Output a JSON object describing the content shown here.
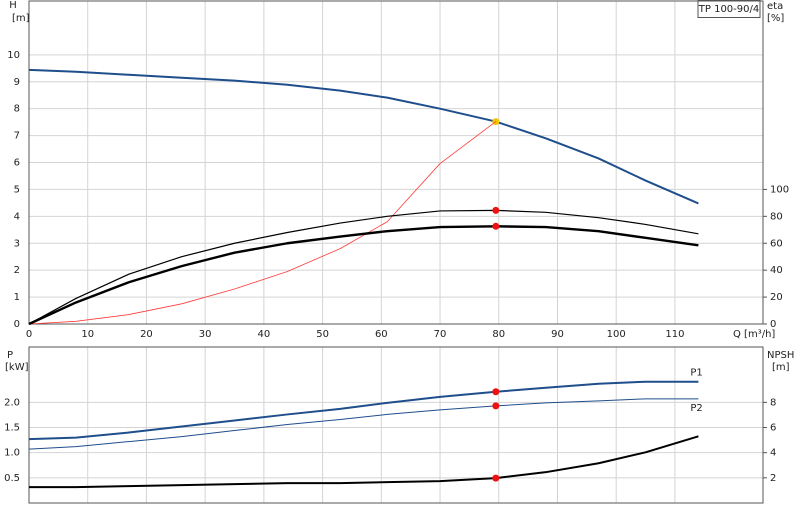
{
  "chart_data": [
    {
      "type": "line",
      "label": "TP 100-90/4",
      "x_label": "Q [m³/h]",
      "y_label": "H",
      "y_unit": "[m]",
      "y2_label": "eta",
      "y2_unit": "[%]",
      "x": [
        0,
        8,
        17,
        26,
        35,
        44,
        53,
        61,
        70,
        79.5,
        88,
        97,
        105,
        114
      ],
      "xlim": [
        0,
        125
      ],
      "xticks": [
        0,
        10,
        20,
        30,
        40,
        50,
        60,
        70,
        80,
        90,
        100,
        110
      ],
      "show_xtick_labels": true,
      "ylim": [
        0,
        12
      ],
      "yticks": [
        0,
        1,
        2,
        3,
        4,
        5,
        6,
        7,
        8,
        9,
        10
      ],
      "y2lim": [
        0,
        240
      ],
      "y2ticks": [
        0,
        20,
        40,
        60,
        80,
        100
      ],
      "grid": true,
      "series": [
        {
          "color": "#1f4e8c",
          "width": 2,
          "axis": "y",
          "values": [
            9.44,
            9.37,
            9.26,
            9.15,
            9.04,
            8.89,
            8.67,
            8.41,
            8.0,
            7.52,
            6.9,
            6.15,
            5.33,
            4.48
          ],
          "marker_x": 79.5,
          "marker_value": 7.52,
          "marker_color": "#f5c400"
        },
        {
          "color": "#ff3b3b",
          "width": 0.8,
          "axis": "y",
          "values": [
            0,
            0.1,
            0.35,
            0.75,
            1.3,
            1.95,
            2.8,
            3.8,
            5.96,
            7.52,
            null,
            null,
            null,
            null
          ]
        },
        {
          "color": "#000000",
          "width": 1.2,
          "axis": "y2",
          "values": [
            0,
            19,
            37,
            50,
            60,
            68,
            75,
            80,
            84,
            84.4,
            83,
            79,
            74,
            67
          ],
          "marker_x": 79.5,
          "marker_value": 84.4,
          "marker_color": "#ee1111"
        },
        {
          "color": "#000000",
          "width": 2.4,
          "axis": "y2",
          "values": [
            0,
            16,
            31,
            43,
            53,
            60,
            65,
            69,
            72,
            72.6,
            72,
            69,
            64,
            58.5
          ],
          "marker_x": 79.5,
          "marker_value": 72.6,
          "marker_color": "#ee1111"
        }
      ]
    },
    {
      "type": "line",
      "y_label": "P",
      "y_unit": "[kW]",
      "y2_label": "NPSH",
      "y2_unit": "[m]",
      "x": [
        0,
        8,
        17,
        26,
        35,
        44,
        53,
        61,
        70,
        79.5,
        88,
        97,
        105,
        114
      ],
      "xlim": [
        0,
        125
      ],
      "xticks": [
        0,
        10,
        20,
        30,
        40,
        50,
        60,
        70,
        80,
        90,
        100,
        110
      ],
      "show_xtick_labels": false,
      "ylim": [
        0,
        3.1
      ],
      "yticks": [
        0.5,
        {
          "value": 1,
          "label": "1.0"
        },
        1.5,
        {
          "value": 2,
          "label": "2.0"
        }
      ],
      "y2lim": [
        0,
        12.4
      ],
      "y2ticks": [
        2,
        4,
        6,
        8
      ],
      "grid": true,
      "series": [
        {
          "name": "P1",
          "color": "#1f4e8c",
          "width": 2,
          "axis": "y",
          "values": [
            1.27,
            1.3,
            1.4,
            1.52,
            1.64,
            1.76,
            1.87,
            1.99,
            2.11,
            2.21,
            2.29,
            2.37,
            2.41,
            2.41
          ],
          "marker_x": 79.5,
          "marker_value": 2.21,
          "marker_color": "#ee1111"
        },
        {
          "name": "P2",
          "color": "#1f4e8c",
          "width": 1,
          "axis": "y",
          "values": [
            1.07,
            1.12,
            1.22,
            1.32,
            1.44,
            1.56,
            1.66,
            1.76,
            1.85,
            1.93,
            1.99,
            2.03,
            2.07,
            2.07
          ],
          "marker_x": 79.5,
          "marker_value": 1.93,
          "marker_color": "#ee1111"
        },
        {
          "color": "#000000",
          "width": 2,
          "axis": "y2",
          "values": [
            1.26,
            1.26,
            1.34,
            1.42,
            1.5,
            1.58,
            1.58,
            1.66,
            1.74,
            1.98,
            2.45,
            3.16,
            4.03,
            5.3
          ],
          "marker_x": 79.5,
          "marker_value": 1.98,
          "marker_color": "#ee1111"
        }
      ]
    }
  ]
}
